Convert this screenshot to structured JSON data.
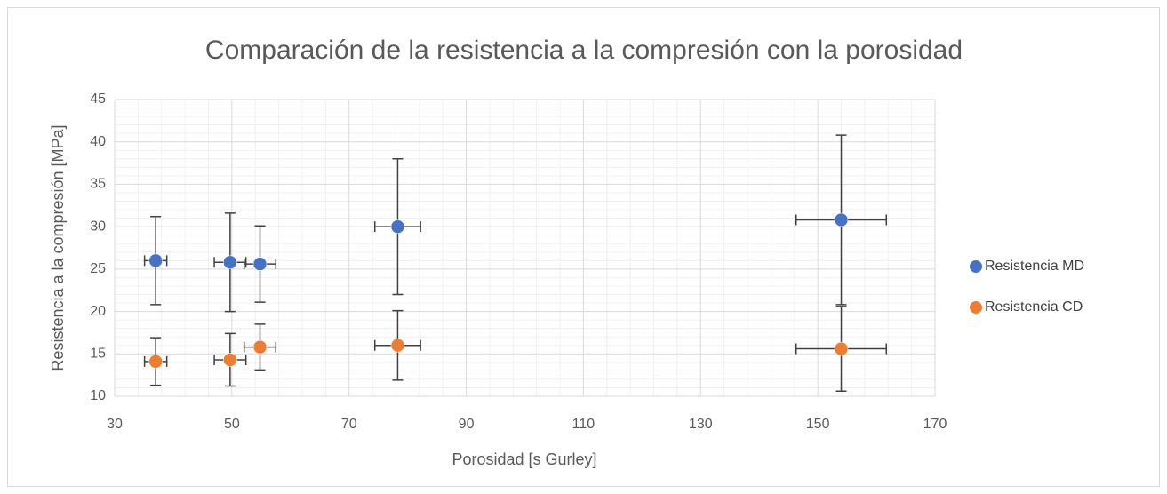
{
  "chart_data": {
    "type": "scatter",
    "title": "Comparación de la resistencia a la compresión con la porosidad",
    "x_label": "Porosidad [s Gurley]",
    "y_label": "Resistencia a la compresión [MPa]",
    "xlim": [
      30,
      170
    ],
    "xticks": [
      30,
      50,
      70,
      90,
      110,
      130,
      150,
      170
    ],
    "ylim": [
      10,
      45
    ],
    "yticks": [
      10,
      15,
      20,
      25,
      30,
      35,
      40,
      45
    ],
    "grid": true,
    "minor_grid": true,
    "legend": "right",
    "series": [
      {
        "name": "Resistencia MD",
        "color": "#4472c4",
        "x": [
          37,
          49.7,
          54.8,
          78.3,
          154
        ],
        "values": [
          26.0,
          25.8,
          25.6,
          30.0,
          30.8
        ],
        "xerr": [
          1.9,
          2.7,
          2.7,
          3.9,
          7.7
        ],
        "yerr": [
          5.2,
          5.8,
          4.5,
          8.0,
          10.0
        ]
      },
      {
        "name": "Resistencia CD",
        "color": "#ed7d31",
        "x": [
          37,
          49.7,
          54.8,
          78.3,
          154
        ],
        "values": [
          14.1,
          14.3,
          15.8,
          16.0,
          15.6
        ],
        "xerr": [
          1.9,
          2.7,
          2.7,
          3.9,
          7.7
        ],
        "yerr": [
          2.8,
          3.1,
          2.7,
          4.1,
          5.0
        ]
      }
    ]
  }
}
